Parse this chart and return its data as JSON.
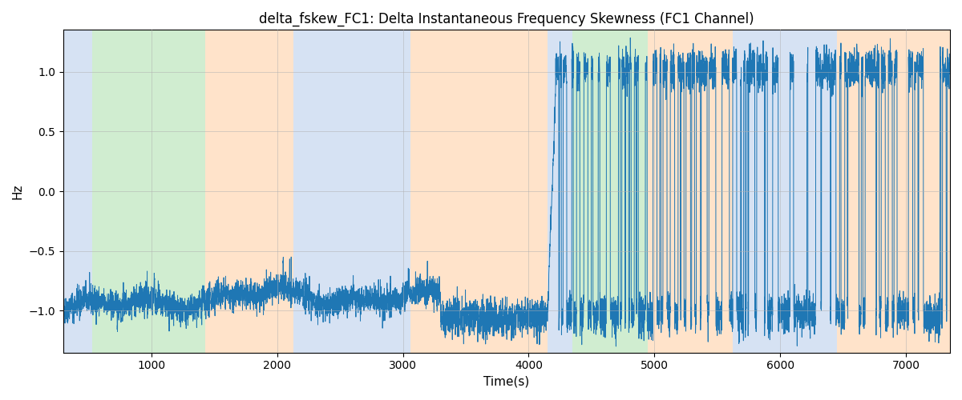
{
  "title": "delta_fskew_FC1: Delta Instantaneous Frequency Skewness (FC1 Channel)",
  "xlabel": "Time(s)",
  "ylabel": "Hz",
  "xlim": [
    300,
    7350
  ],
  "ylim": [
    -1.35,
    1.35
  ],
  "yticks": [
    -1.0,
    -0.5,
    0.0,
    0.5,
    1.0
  ],
  "xticks": [
    1000,
    2000,
    3000,
    4000,
    5000,
    6000,
    7000
  ],
  "line_color": "#1f77b4",
  "line_width": 0.7,
  "bg_bands": [
    {
      "xmin": 300,
      "xmax": 530,
      "color": "#aec6e8",
      "alpha": 0.5
    },
    {
      "xmin": 530,
      "xmax": 1430,
      "color": "#98d898",
      "alpha": 0.45
    },
    {
      "xmin": 1430,
      "xmax": 2130,
      "color": "#ffc896",
      "alpha": 0.5
    },
    {
      "xmin": 2130,
      "xmax": 3060,
      "color": "#aec6e8",
      "alpha": 0.5
    },
    {
      "xmin": 3060,
      "xmax": 4150,
      "color": "#ffc896",
      "alpha": 0.5
    },
    {
      "xmin": 4150,
      "xmax": 4350,
      "color": "#aec6e8",
      "alpha": 0.5
    },
    {
      "xmin": 4350,
      "xmax": 4950,
      "color": "#98d898",
      "alpha": 0.45
    },
    {
      "xmin": 4950,
      "xmax": 5620,
      "color": "#ffc896",
      "alpha": 0.5
    },
    {
      "xmin": 5620,
      "xmax": 6450,
      "color": "#aec6e8",
      "alpha": 0.5
    },
    {
      "xmin": 6450,
      "xmax": 7350,
      "color": "#ffc896",
      "alpha": 0.5
    }
  ],
  "seed": 42,
  "figsize": [
    12.0,
    5.0
  ],
  "dpi": 100
}
